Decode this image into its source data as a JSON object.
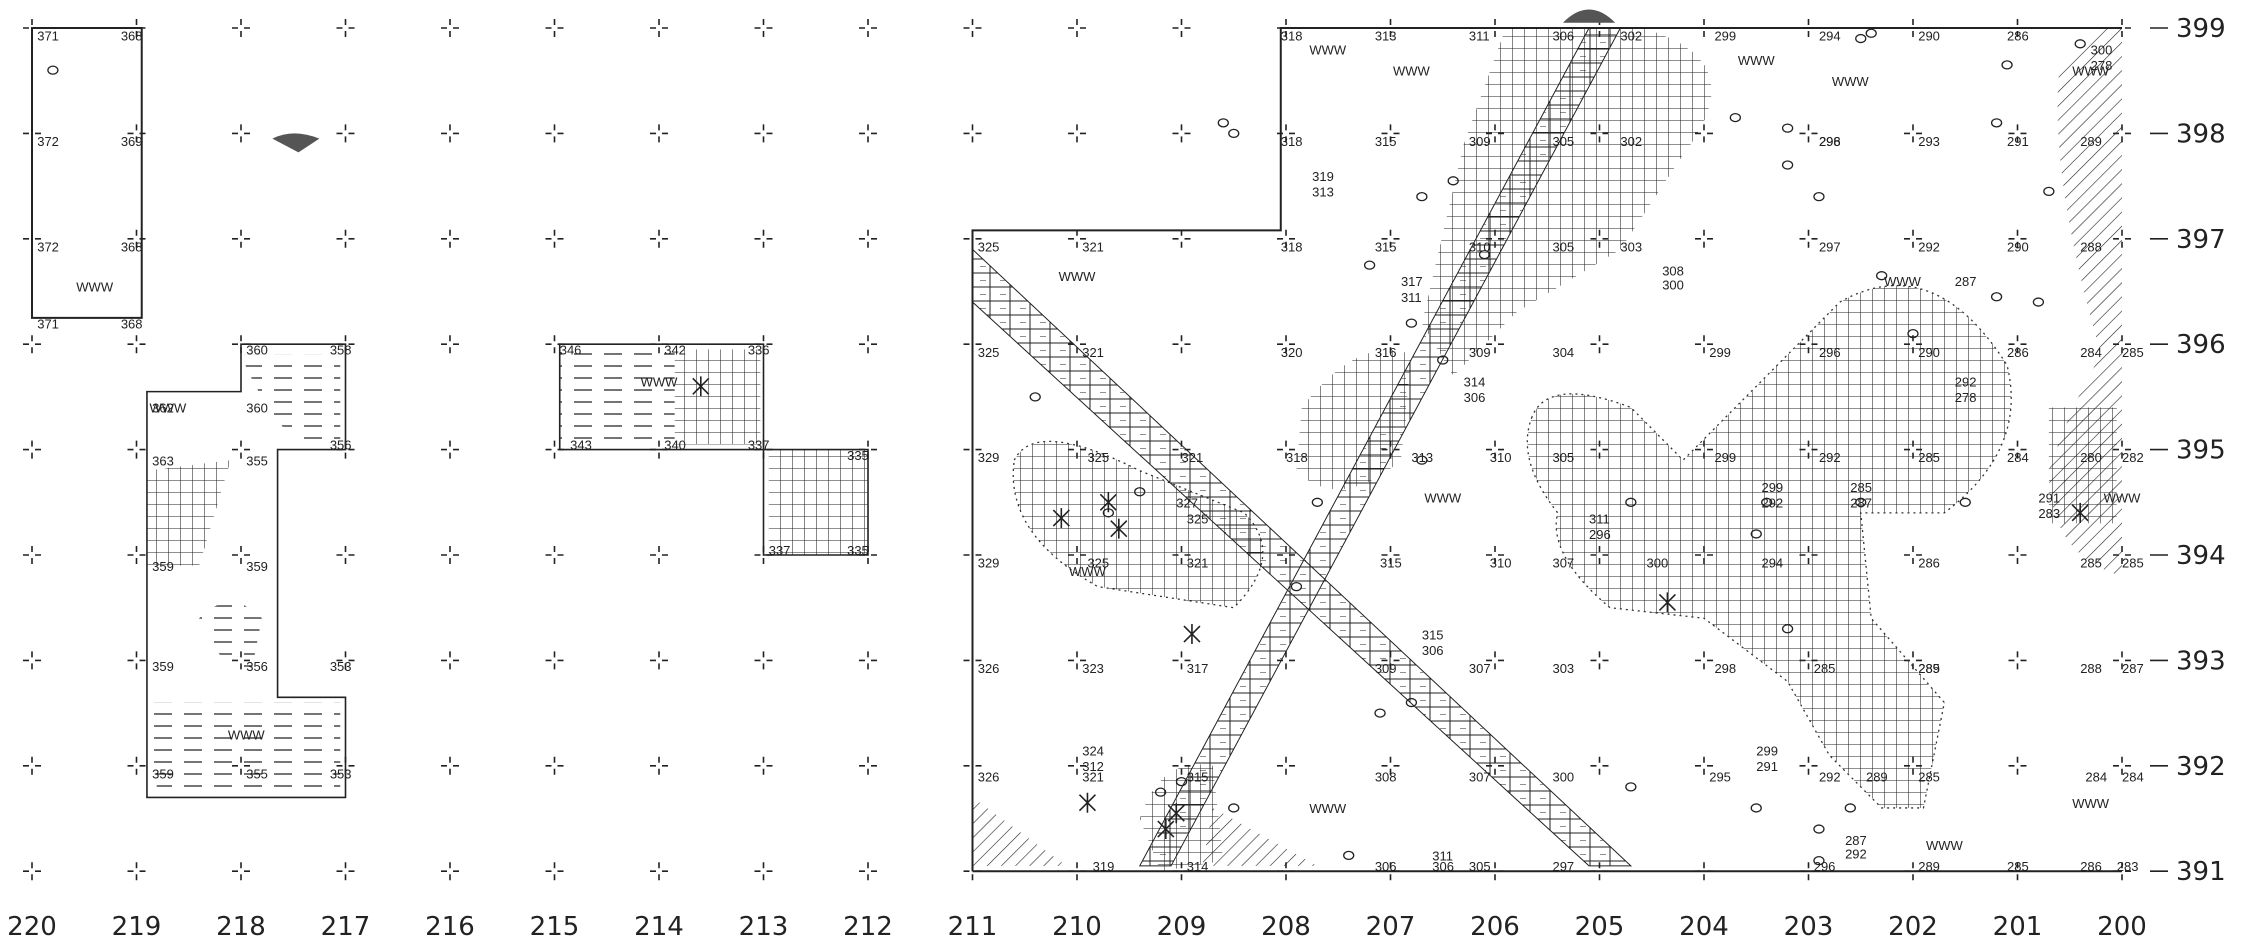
{
  "x_axis": {
    "labels": [
      "220",
      "219",
      "218",
      "217",
      "216",
      "215",
      "214",
      "213",
      "212",
      "211",
      "210",
      "209",
      "208",
      "207",
      "206",
      "205",
      "204",
      "203",
      "202",
      "201",
      "200"
    ]
  },
  "y_axis": {
    "labels": [
      "399",
      "398",
      "397",
      "396",
      "395",
      "394",
      "393",
      "392",
      "391"
    ]
  },
  "elevations": {
    "block_a": [
      "371",
      "368",
      "372",
      "369",
      "372",
      "368",
      "371",
      "368"
    ],
    "block_b": [
      "360",
      "358",
      "362",
      "360",
      "363",
      "355",
      "356",
      "359",
      "359",
      "359",
      "356",
      "353",
      "359",
      "355",
      "353"
    ],
    "block_c": [
      "346",
      "342",
      "336",
      "343",
      "340",
      "337",
      "337",
      "335",
      "335"
    ],
    "main_left": [
      "318",
      "313",
      "311",
      "306",
      "302",
      "318",
      "315",
      "309",
      "305",
      "302",
      "319",
      "313",
      "325",
      "321",
      "318",
      "315",
      "310",
      "305",
      "303",
      "317",
      "311",
      "325",
      "321",
      "320",
      "316",
      "309",
      "304",
      "314",
      "306",
      "329",
      "325",
      "321",
      "318",
      "313",
      "310",
      "305",
      "327",
      "325",
      "329",
      "325",
      "321",
      "315",
      "310",
      "307",
      "315",
      "306",
      "326",
      "323",
      "317",
      "309",
      "307",
      "303",
      "324",
      "312",
      "321",
      "315",
      "308",
      "307",
      "300",
      "326",
      "319",
      "314",
      "306",
      "311",
      "306",
      "305",
      "297",
      "308",
      "300"
    ],
    "main_right": [
      "299",
      "294",
      "290",
      "286",
      "296",
      "300",
      "278",
      "298",
      "293",
      "291",
      "289",
      "297",
      "292",
      "290",
      "288",
      "287",
      "299",
      "296",
      "290",
      "286",
      "284",
      "285",
      "292",
      "278",
      "299",
      "292",
      "285",
      "284",
      "280",
      "282",
      "299",
      "292",
      "285",
      "287",
      "291",
      "283",
      "311",
      "296",
      "300",
      "294",
      "286",
      "285",
      "285",
      "298",
      "285",
      "289",
      "288",
      "287",
      "285",
      "299",
      "291",
      "295",
      "292",
      "289",
      "285",
      "284",
      "284",
      "296",
      "287",
      "292",
      "289",
      "285",
      "286",
      "283",
      "282"
    ]
  },
  "symbols": {
    "marsh": "WWW"
  },
  "colors": {
    "ink": "#1a1a1a",
    "shade": "#555555",
    "background": "#ffffff"
  }
}
